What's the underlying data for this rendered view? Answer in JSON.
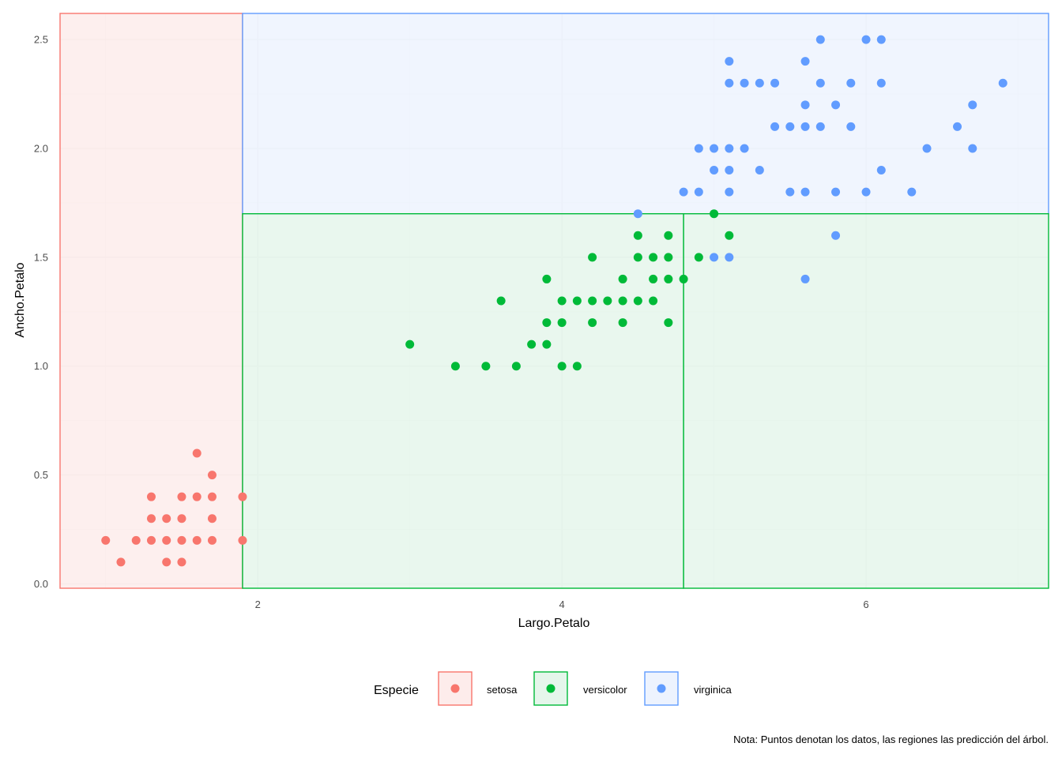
{
  "chart_data": {
    "type": "scatter",
    "xlabel": "Largo.Petalo",
    "ylabel": "Ancho.Petalo",
    "xlim": [
      0.7,
      7.2
    ],
    "ylim": [
      -0.02,
      2.62
    ],
    "x_ticks": [
      2,
      4,
      6
    ],
    "y_ticks": [
      0.0,
      0.5,
      1.0,
      1.5,
      2.0,
      2.5
    ],
    "x_tick_labels": [
      "2",
      "4",
      "6"
    ],
    "y_tick_labels": [
      "0.0",
      "0.5",
      "1.0",
      "1.5",
      "2.0",
      "2.5"
    ],
    "grid": true,
    "legend_position": "bottom",
    "legend": {
      "title": "Especie",
      "entries": [
        {
          "name": "setosa",
          "color": "#F8766D",
          "fill": "#FDECEB"
        },
        {
          "name": "versicolor",
          "color": "#00BA38",
          "fill": "#E5F6EB"
        },
        {
          "name": "virginica",
          "color": "#619CFF",
          "fill": "#EDF3FE"
        }
      ]
    },
    "caption": "Nota: Puntos denotan los datos, las regiones las predicción del árbol.",
    "regions": [
      {
        "species": "setosa",
        "x": [
          0.7,
          1.9
        ],
        "y": [
          -0.02,
          2.62
        ]
      },
      {
        "species": "virginica",
        "x": [
          1.9,
          7.2
        ],
        "y": [
          1.7,
          2.62
        ]
      },
      {
        "species": "versicolor",
        "x": [
          1.9,
          4.8
        ],
        "y": [
          -0.02,
          1.7
        ]
      },
      {
        "species": "versicolor",
        "x": [
          4.8,
          7.2
        ],
        "y": [
          -0.02,
          1.7
        ]
      }
    ],
    "series": [
      {
        "name": "setosa",
        "points": [
          [
            1.0,
            0.2
          ],
          [
            1.1,
            0.1
          ],
          [
            1.2,
            0.2
          ],
          [
            1.3,
            0.2
          ],
          [
            1.3,
            0.3
          ],
          [
            1.3,
            0.4
          ],
          [
            1.4,
            0.1
          ],
          [
            1.4,
            0.2
          ],
          [
            1.4,
            0.3
          ],
          [
            1.5,
            0.1
          ],
          [
            1.5,
            0.2
          ],
          [
            1.5,
            0.3
          ],
          [
            1.5,
            0.4
          ],
          [
            1.6,
            0.2
          ],
          [
            1.6,
            0.4
          ],
          [
            1.6,
            0.6
          ],
          [
            1.7,
            0.2
          ],
          [
            1.7,
            0.3
          ],
          [
            1.7,
            0.4
          ],
          [
            1.7,
            0.5
          ],
          [
            1.9,
            0.2
          ],
          [
            1.9,
            0.4
          ]
        ]
      },
      {
        "name": "versicolor",
        "points": [
          [
            3.0,
            1.1
          ],
          [
            3.3,
            1.0
          ],
          [
            3.5,
            1.0
          ],
          [
            3.6,
            1.3
          ],
          [
            3.7,
            1.0
          ],
          [
            3.8,
            1.1
          ],
          [
            3.9,
            1.1
          ],
          [
            3.9,
            1.2
          ],
          [
            3.9,
            1.4
          ],
          [
            4.0,
            1.0
          ],
          [
            4.0,
            1.2
          ],
          [
            4.0,
            1.3
          ],
          [
            4.1,
            1.0
          ],
          [
            4.1,
            1.3
          ],
          [
            4.2,
            1.2
          ],
          [
            4.2,
            1.3
          ],
          [
            4.2,
            1.5
          ],
          [
            4.3,
            1.3
          ],
          [
            4.4,
            1.2
          ],
          [
            4.4,
            1.3
          ],
          [
            4.4,
            1.4
          ],
          [
            4.5,
            1.3
          ],
          [
            4.5,
            1.5
          ],
          [
            4.5,
            1.6
          ],
          [
            4.6,
            1.3
          ],
          [
            4.6,
            1.4
          ],
          [
            4.6,
            1.5
          ],
          [
            4.7,
            1.2
          ],
          [
            4.7,
            1.4
          ],
          [
            4.7,
            1.5
          ],
          [
            4.7,
            1.6
          ],
          [
            4.8,
            1.4
          ],
          [
            4.9,
            1.5
          ],
          [
            5.0,
            1.7
          ],
          [
            5.1,
            1.6
          ]
        ]
      },
      {
        "name": "virginica",
        "points": [
          [
            4.5,
            1.7
          ],
          [
            4.8,
            1.8
          ],
          [
            4.9,
            1.8
          ],
          [
            4.9,
            2.0
          ],
          [
            5.0,
            1.5
          ],
          [
            5.0,
            1.9
          ],
          [
            5.0,
            2.0
          ],
          [
            5.1,
            1.5
          ],
          [
            5.1,
            1.8
          ],
          [
            5.1,
            1.9
          ],
          [
            5.1,
            2.0
          ],
          [
            5.1,
            2.3
          ],
          [
            5.1,
            2.4
          ],
          [
            5.2,
            2.0
          ],
          [
            5.2,
            2.3
          ],
          [
            5.3,
            1.9
          ],
          [
            5.3,
            2.3
          ],
          [
            5.4,
            2.1
          ],
          [
            5.4,
            2.3
          ],
          [
            5.5,
            1.8
          ],
          [
            5.5,
            2.1
          ],
          [
            5.6,
            1.4
          ],
          [
            5.6,
            1.8
          ],
          [
            5.6,
            2.1
          ],
          [
            5.6,
            2.2
          ],
          [
            5.6,
            2.4
          ],
          [
            5.7,
            2.1
          ],
          [
            5.7,
            2.3
          ],
          [
            5.7,
            2.5
          ],
          [
            5.8,
            1.6
          ],
          [
            5.8,
            1.8
          ],
          [
            5.8,
            2.2
          ],
          [
            5.9,
            2.1
          ],
          [
            5.9,
            2.3
          ],
          [
            6.0,
            1.8
          ],
          [
            6.0,
            2.5
          ],
          [
            6.1,
            1.9
          ],
          [
            6.1,
            2.3
          ],
          [
            6.1,
            2.5
          ],
          [
            6.3,
            1.8
          ],
          [
            6.4,
            2.0
          ],
          [
            6.6,
            2.1
          ],
          [
            6.7,
            2.0
          ],
          [
            6.7,
            2.2
          ],
          [
            6.9,
            2.3
          ]
        ]
      }
    ]
  }
}
